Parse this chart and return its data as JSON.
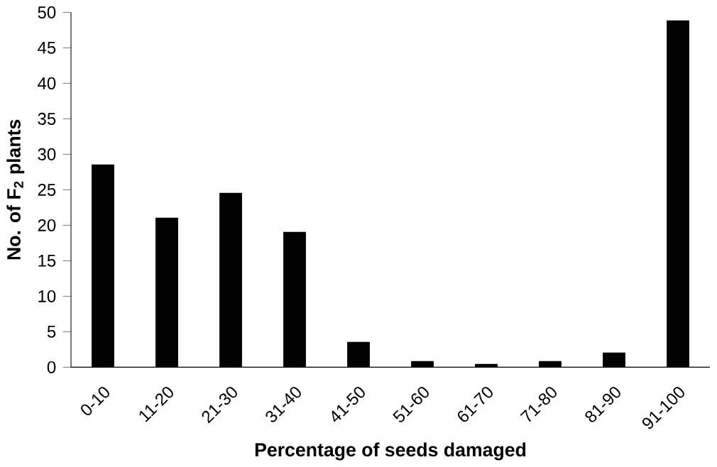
{
  "chart_data": {
    "type": "bar",
    "xlabel": "Percentage of seeds damaged",
    "ylabel": "No. of F$_{2}$ plants",
    "categories": [
      "0-10",
      "11-20",
      "21-30",
      "31-40",
      "41-50",
      "51-60",
      "61-70",
      "71-80",
      "81-90",
      "91-100"
    ],
    "values": [
      28.5,
      21,
      24.5,
      19,
      3.5,
      0.8,
      0.4,
      0.8,
      2,
      48.8
    ],
    "color": "#000000",
    "ylim": [
      0,
      50
    ],
    "yticks": [
      0,
      5,
      10,
      15,
      20,
      25,
      30,
      35,
      40,
      45,
      50
    ]
  }
}
